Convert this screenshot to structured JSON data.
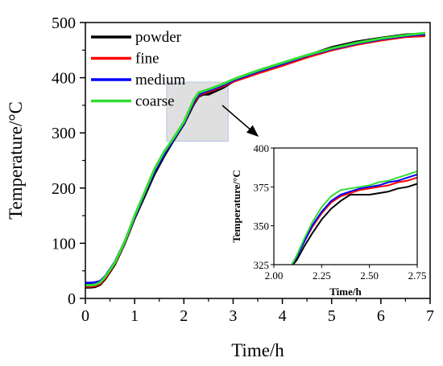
{
  "chart_data": [
    {
      "type": "line",
      "title": "",
      "xlabel": "Time/h",
      "ylabel": "Temperature/°C",
      "xlim": [
        0,
        7
      ],
      "ylim": [
        0,
        500
      ],
      "xticks": [
        "0",
        "1",
        "2",
        "3",
        "4",
        "5",
        "6",
        "7"
      ],
      "yticks": [
        "0",
        "100",
        "200",
        "300",
        "400",
        "500"
      ],
      "grid": false,
      "legend": "top-left",
      "highlight_box": {
        "x": [
          1.65,
          2.9
        ],
        "y": [
          285,
          392
        ]
      },
      "series": [
        {
          "name": "powder",
          "color": "#000000",
          "x": [
            0,
            0.1,
            0.2,
            0.3,
            0.4,
            0.6,
            0.8,
            1.0,
            1.2,
            1.4,
            1.6,
            1.8,
            2.0,
            2.2,
            2.3,
            2.4,
            2.5,
            2.6,
            2.8,
            3.0,
            3.5,
            4.0,
            4.5,
            5.0,
            5.5,
            6.0,
            6.5,
            6.9
          ],
          "y": [
            20,
            20,
            21,
            25,
            35,
            62,
            100,
            145,
            185,
            225,
            258,
            288,
            316,
            352,
            366,
            370,
            370,
            374,
            382,
            393,
            410,
            425,
            440,
            455,
            465,
            472,
            478,
            480
          ]
        },
        {
          "name": "fine",
          "color": "#ff0000",
          "x": [
            0,
            0.1,
            0.2,
            0.3,
            0.4,
            0.6,
            0.8,
            1.0,
            1.2,
            1.4,
            1.6,
            1.8,
            2.0,
            2.2,
            2.3,
            2.4,
            2.5,
            2.6,
            2.8,
            3.0,
            3.5,
            4.0,
            4.5,
            5.0,
            5.5,
            6.0,
            6.5,
            6.9
          ],
          "y": [
            22,
            22,
            23,
            27,
            37,
            64,
            102,
            148,
            190,
            230,
            262,
            290,
            318,
            355,
            368,
            372,
            375,
            378,
            385,
            393,
            408,
            422,
            437,
            450,
            460,
            468,
            474,
            476
          ]
        },
        {
          "name": "medium",
          "color": "#0000ff",
          "x": [
            0,
            0.1,
            0.2,
            0.3,
            0.4,
            0.6,
            0.8,
            1.0,
            1.2,
            1.4,
            1.6,
            1.8,
            2.0,
            2.2,
            2.3,
            2.4,
            2.5,
            2.6,
            2.8,
            3.0,
            3.5,
            4.0,
            4.5,
            5.0,
            5.5,
            6.0,
            6.5,
            6.9
          ],
          "y": [
            28,
            28,
            29,
            31,
            40,
            66,
            103,
            148,
            190,
            230,
            262,
            290,
            318,
            357,
            370,
            374,
            377,
            380,
            387,
            395,
            411,
            425,
            440,
            452,
            462,
            470,
            476,
            479
          ]
        },
        {
          "name": "coarse",
          "color": "#33dd33",
          "x": [
            0,
            0.1,
            0.2,
            0.3,
            0.4,
            0.6,
            0.8,
            1.0,
            1.2,
            1.4,
            1.6,
            1.8,
            2.0,
            2.2,
            2.3,
            2.4,
            2.5,
            2.6,
            2.8,
            3.0,
            3.5,
            4.0,
            4.5,
            5.0,
            5.5,
            6.0,
            6.5,
            6.9
          ],
          "y": [
            24,
            24,
            25,
            29,
            39,
            65,
            103,
            150,
            192,
            234,
            266,
            292,
            320,
            360,
            373,
            376,
            379,
            382,
            389,
            397,
            413,
            427,
            441,
            453,
            463,
            471,
            477,
            481
          ]
        }
      ]
    },
    {
      "type": "line",
      "title": "",
      "xlabel": "Time/h",
      "ylabel": "Temperature/°C",
      "xlim": [
        2.0,
        2.75
      ],
      "ylim": [
        325,
        400
      ],
      "xticks": [
        "2.00",
        "2.25",
        "2.50",
        "2.75"
      ],
      "yticks": [
        "325",
        "350",
        "375",
        "400"
      ],
      "grid": false,
      "series": [
        {
          "name": "powder",
          "color": "#000000",
          "x": [
            2.08,
            2.12,
            2.16,
            2.2,
            2.25,
            2.3,
            2.35,
            2.4,
            2.45,
            2.5,
            2.55,
            2.6,
            2.65,
            2.7,
            2.75
          ],
          "y": [
            322,
            328,
            337,
            345,
            354,
            361,
            366,
            370,
            370,
            370,
            371,
            372,
            374,
            375,
            377
          ]
        },
        {
          "name": "fine",
          "color": "#ff0000",
          "x": [
            2.08,
            2.12,
            2.16,
            2.2,
            2.25,
            2.3,
            2.35,
            2.4,
            2.45,
            2.5,
            2.55,
            2.6,
            2.65,
            2.7,
            2.75
          ],
          "y": [
            322,
            330,
            340,
            349,
            358,
            365,
            369,
            371,
            373,
            374,
            375,
            376,
            378,
            379,
            381
          ]
        },
        {
          "name": "medium",
          "color": "#0000ff",
          "x": [
            2.08,
            2.12,
            2.16,
            2.2,
            2.25,
            2.3,
            2.35,
            2.4,
            2.45,
            2.5,
            2.55,
            2.6,
            2.65,
            2.7,
            2.75
          ],
          "y": [
            322,
            330,
            340,
            350,
            359,
            366,
            370,
            372,
            374,
            375,
            376,
            378,
            379,
            381,
            383
          ]
        },
        {
          "name": "coarse",
          "color": "#33dd33",
          "x": [
            2.08,
            2.12,
            2.16,
            2.2,
            2.25,
            2.3,
            2.35,
            2.4,
            2.45,
            2.5,
            2.55,
            2.6,
            2.65,
            2.7,
            2.75
          ],
          "y": [
            322,
            331,
            342,
            352,
            362,
            369,
            373,
            374,
            375,
            376,
            378,
            379,
            381,
            383,
            385
          ]
        }
      ]
    }
  ]
}
